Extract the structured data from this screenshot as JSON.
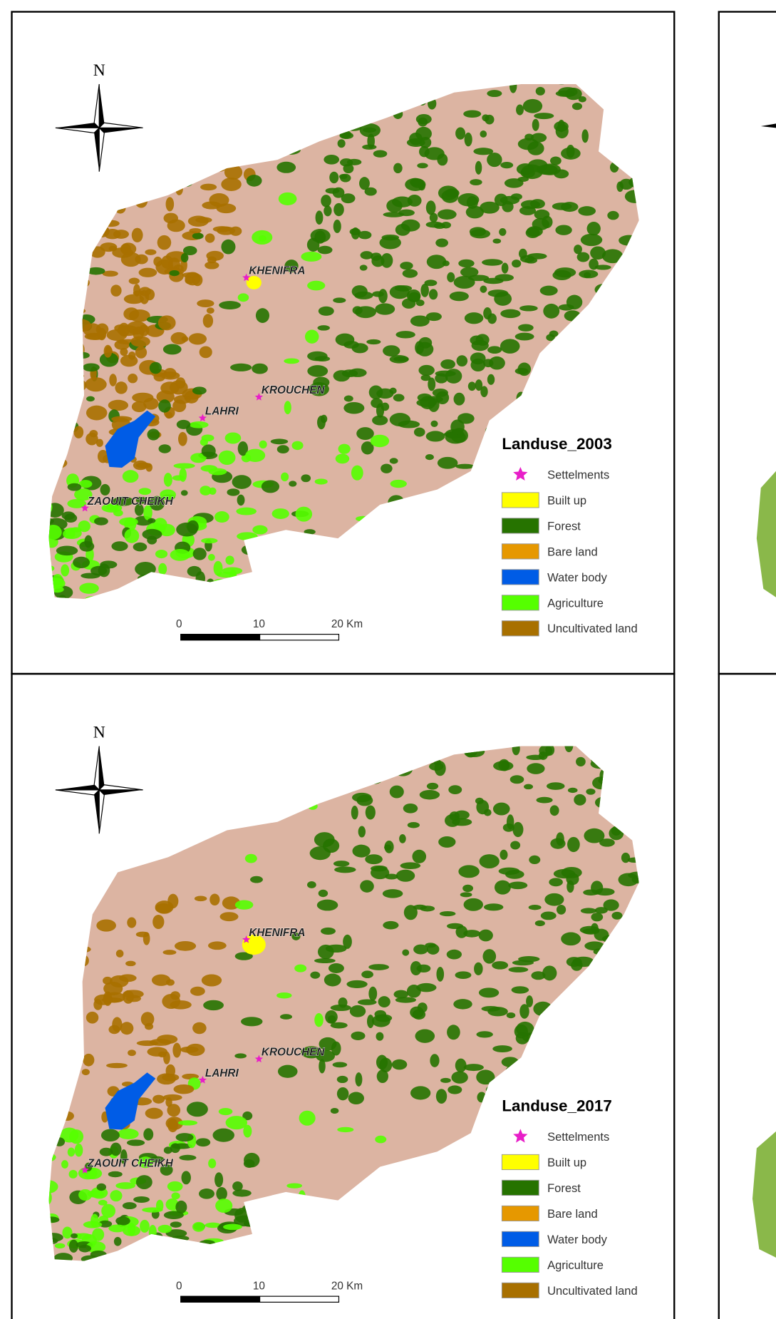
{
  "panels": [
    {
      "north": "N",
      "places": [
        "KHENIFRA",
        "KROUCHEN",
        "LAHRI",
        "ZAOUIT CHEIKH"
      ],
      "scale": [
        "0",
        "10",
        "20 Km"
      ],
      "legend": {
        "title": "Landuse_2003",
        "items": [
          {
            "label": "Settelments",
            "color": "#e81ec8"
          },
          {
            "label": "Built up",
            "color": "#ffff00"
          },
          {
            "label": "Forest",
            "color": "#267300"
          },
          {
            "label": "Bare land",
            "color": "#e69800"
          },
          {
            "label": "Water body",
            "color": "#005ce6"
          },
          {
            "label": "Agriculture",
            "color": "#55ff00"
          },
          {
            "label": "Uncultivated land",
            "color": "#a87000"
          }
        ]
      }
    },
    {
      "north": "N",
      "places": [
        "KHENIFRA",
        "KROUCHEN",
        "LAHRI",
        "ZAOUIT CHEIKH"
      ],
      "scale": [
        "0",
        "10",
        "20 Km"
      ],
      "legend": {
        "title": "Landuse_2017",
        "items": [
          {
            "label": "Settelments",
            "color": "#e81ec8"
          },
          {
            "label": "Built up",
            "color": "#ffff00"
          },
          {
            "label": "Forest",
            "color": "#267300"
          },
          {
            "label": "Bare land",
            "color": "#e69800"
          },
          {
            "label": "Water body",
            "color": "#005ce6"
          },
          {
            "label": "Agriculture",
            "color": "#55ff00"
          },
          {
            "label": "Uncultivated land",
            "color": "#a87000"
          }
        ]
      }
    }
  ]
}
